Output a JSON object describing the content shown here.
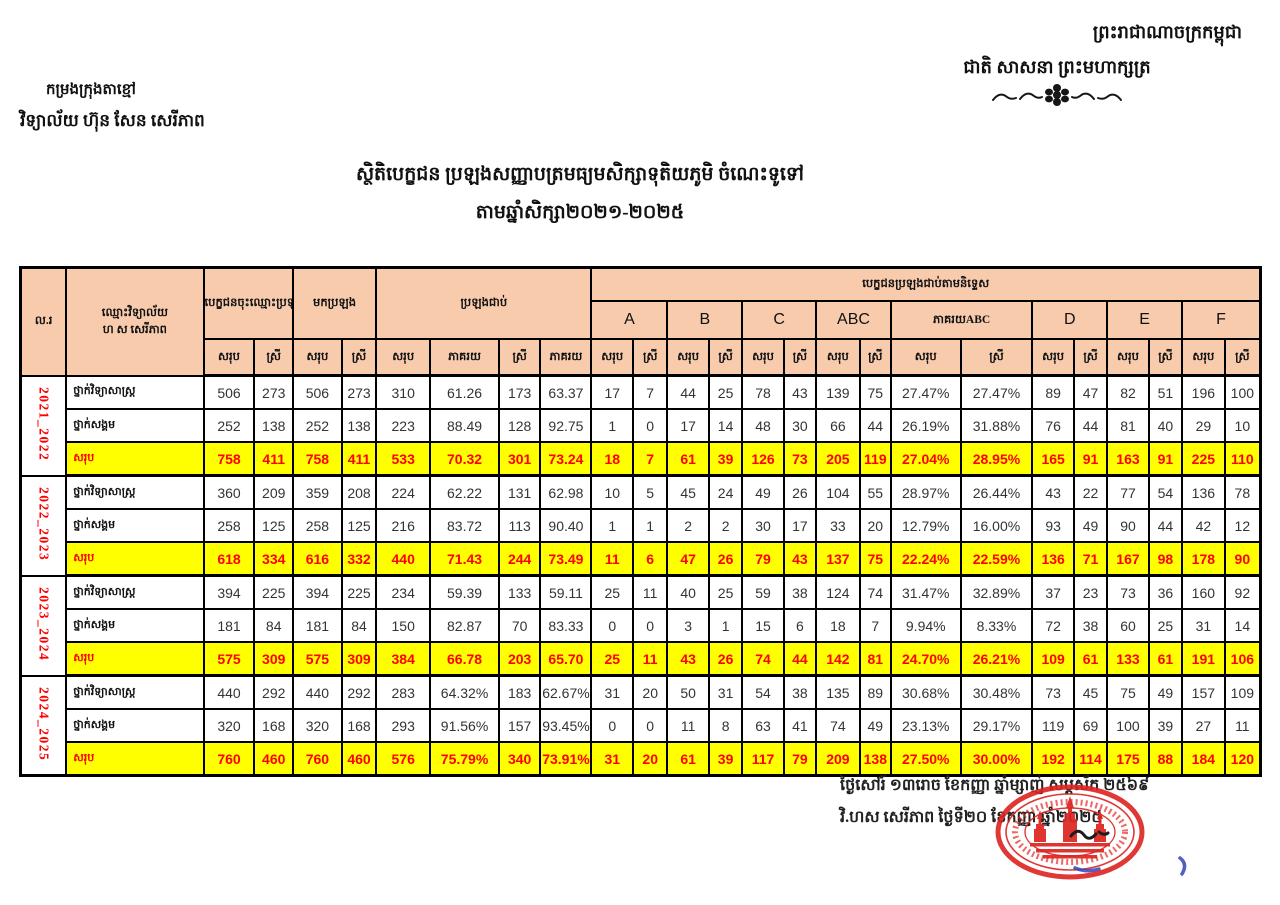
{
  "page": {
    "kingdom_line1": "ព្រះរាជាណាចក្រកម្ពុជា",
    "kingdom_line2": "ជាតិ សាសនា ព្រះមហាក្សត្រ",
    "org_line1": "កម្រងក្រុងតាខ្មៅ",
    "org_line2": "វិទ្យាល័យ ហ៊ុន សែន សេរីភាព",
    "title_line1": "ស្ថិតិបេក្ខជន ប្រឡងសញ្ញាបត្រមធ្យមសិក្សាទុតិយភូមិ ចំណេះទូទៅ",
    "title_line2": "តាមឆ្នាំសិក្សា២០២១-២០២៥",
    "footer_line1": "ថ្ងៃសៅរ៍ ១៣រោច ខែកញ្ញា ឆ្នាំម្សាញ់ សប្តស័ក ២៥៦៩",
    "footer_line2": "វិ.ហស សេរីភាព ថ្ងៃទី២០ ខែកញ្ញា ឆ្នាំ២០២៥"
  },
  "colors": {
    "header_fill": "#F8CBAD",
    "highlight_yellow": "#FFFF00",
    "accent_red": "#FE0000",
    "stamp_red": "#DD2420",
    "ink_blue": "#3344BB"
  },
  "icons": {
    "flourish": "decorative-flourish",
    "stamp": "official-round-stamp-angkor",
    "signature": "handwritten-signature",
    "blue_mark": "blue-ink-mark"
  },
  "table": {
    "headers": {
      "no": "ល.រ",
      "school_line1": "ឈ្មោះវិទ្យាល័យ",
      "school_line2": "ហ ស សេរីភាព",
      "registered": "បេក្ខជនចុះឈ្មោះប្រឡង",
      "attended": "មកប្រឡង",
      "passed": "ប្រឡងជាប់",
      "by_grade": "បេក្ខជនប្រឡងជាប់តាមនិទ្ទេស",
      "grade_groups": [
        "A",
        "B",
        "C",
        "ABC",
        "ភាគរយABC",
        "D",
        "E",
        "F"
      ],
      "sub_headers": [
        "សរុប",
        "ស្រី",
        "សរុប",
        "ស្រី",
        "សរុប",
        "ភាគរយ",
        "ស្រី",
        "ភាគរយ",
        "សរុប",
        "ស្រី",
        "សរុប",
        "ស្រី",
        "សរុប",
        "ស្រី",
        "សរុប",
        "ស្រី",
        "សរុប",
        "ស្រី",
        "សរុប",
        "ស្រី",
        "សរុប",
        "ស្រី",
        "សរុប",
        "ស្រី"
      ]
    },
    "groups": [
      {
        "year": "2021_2022",
        "rows": [
          {
            "label": "ថ្នាក់វិទ្យាសាស្ត្រ",
            "total": false,
            "values": [
              "506",
              "273",
              "506",
              "273",
              "310",
              "61.26",
              "173",
              "63.37",
              "17",
              "7",
              "44",
              "25",
              "78",
              "43",
              "139",
              "75",
              "27.47%",
              "27.47%",
              "89",
              "47",
              "82",
              "51",
              "196",
              "100"
            ]
          },
          {
            "label": "ថ្នាក់សង្គម",
            "total": false,
            "values": [
              "252",
              "138",
              "252",
              "138",
              "223",
              "88.49",
              "128",
              "92.75",
              "1",
              "0",
              "17",
              "14",
              "48",
              "30",
              "66",
              "44",
              "26.19%",
              "31.88%",
              "76",
              "44",
              "81",
              "40",
              "29",
              "10"
            ]
          },
          {
            "label": "សរុប",
            "total": true,
            "values": [
              "758",
              "411",
              "758",
              "411",
              "533",
              "70.32",
              "301",
              "73.24",
              "18",
              "7",
              "61",
              "39",
              "126",
              "73",
              "205",
              "119",
              "27.04%",
              "28.95%",
              "165",
              "91",
              "163",
              "91",
              "225",
              "110"
            ]
          }
        ]
      },
      {
        "year": "2022_2023",
        "rows": [
          {
            "label": "ថ្នាក់វិទ្យាសាស្ត្រ",
            "total": false,
            "values": [
              "360",
              "209",
              "359",
              "208",
              "224",
              "62.22",
              "131",
              "62.98",
              "10",
              "5",
              "45",
              "24",
              "49",
              "26",
              "104",
              "55",
              "28.97%",
              "26.44%",
              "43",
              "22",
              "77",
              "54",
              "136",
              "78"
            ]
          },
          {
            "label": "ថ្នាក់សង្គម",
            "total": false,
            "values": [
              "258",
              "125",
              "258",
              "125",
              "216",
              "83.72",
              "113",
              "90.40",
              "1",
              "1",
              "2",
              "2",
              "30",
              "17",
              "33",
              "20",
              "12.79%",
              "16.00%",
              "93",
              "49",
              "90",
              "44",
              "42",
              "12"
            ]
          },
          {
            "label": "សរុប",
            "total": true,
            "values": [
              "618",
              "334",
              "616",
              "332",
              "440",
              "71.43",
              "244",
              "73.49",
              "11",
              "6",
              "47",
              "26",
              "79",
              "43",
              "137",
              "75",
              "22.24%",
              "22.59%",
              "136",
              "71",
              "167",
              "98",
              "178",
              "90"
            ]
          }
        ]
      },
      {
        "year": "2023_2024",
        "rows": [
          {
            "label": "ថ្នាក់វិទ្យាសាស្ត្រ",
            "total": false,
            "values": [
              "394",
              "225",
              "394",
              "225",
              "234",
              "59.39",
              "133",
              "59.11",
              "25",
              "11",
              "40",
              "25",
              "59",
              "38",
              "124",
              "74",
              "31.47%",
              "32.89%",
              "37",
              "23",
              "73",
              "36",
              "160",
              "92"
            ]
          },
          {
            "label": "ថ្នាក់សង្គម",
            "total": false,
            "values": [
              "181",
              "84",
              "181",
              "84",
              "150",
              "82.87",
              "70",
              "83.33",
              "0",
              "0",
              "3",
              "1",
              "15",
              "6",
              "18",
              "7",
              "9.94%",
              "8.33%",
              "72",
              "38",
              "60",
              "25",
              "31",
              "14"
            ]
          },
          {
            "label": "សរុប",
            "total": true,
            "values": [
              "575",
              "309",
              "575",
              "309",
              "384",
              "66.78",
              "203",
              "65.70",
              "25",
              "11",
              "43",
              "26",
              "74",
              "44",
              "142",
              "81",
              "24.70%",
              "26.21%",
              "109",
              "61",
              "133",
              "61",
              "191",
              "106"
            ]
          }
        ]
      },
      {
        "year": "2024_2025",
        "rows": [
          {
            "label": "ថ្នាក់វិទ្យាសាស្ត្រ",
            "total": false,
            "values": [
              "440",
              "292",
              "440",
              "292",
              "283",
              "64.32%",
              "183",
              "62.67%",
              "31",
              "20",
              "50",
              "31",
              "54",
              "38",
              "135",
              "89",
              "30.68%",
              "30.48%",
              "73",
              "45",
              "75",
              "49",
              "157",
              "109"
            ]
          },
          {
            "label": "ថ្នាក់សង្គម",
            "total": false,
            "values": [
              "320",
              "168",
              "320",
              "168",
              "293",
              "91.56%",
              "157",
              "93.45%",
              "0",
              "0",
              "11",
              "8",
              "63",
              "41",
              "74",
              "49",
              "23.13%",
              "29.17%",
              "119",
              "69",
              "100",
              "39",
              "27",
              "11"
            ]
          },
          {
            "label": "សរុប",
            "total": true,
            "values": [
              "760",
              "460",
              "760",
              "460",
              "576",
              "75.79%",
              "340",
              "73.91%",
              "31",
              "20",
              "61",
              "39",
              "117",
              "79",
              "209",
              "138",
              "27.50%",
              "30.00%",
              "192",
              "114",
              "175",
              "88",
              "184",
              "120"
            ]
          }
        ]
      }
    ]
  }
}
